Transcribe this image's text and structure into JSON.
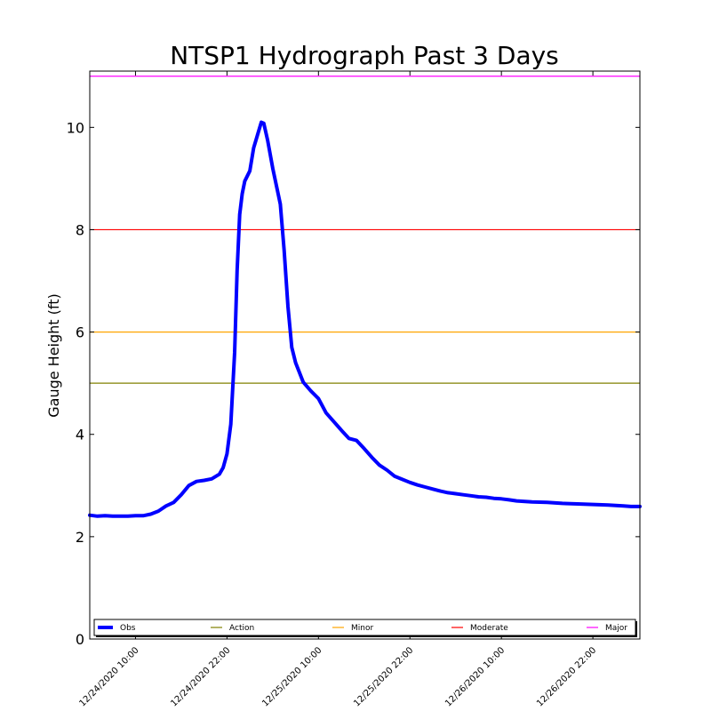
{
  "chart_data": {
    "type": "line",
    "title": "NTSP1 Hydrograph Past 3 Days",
    "xlabel": "",
    "ylabel": "Gauge Height (ft)",
    "xlim": [
      "12/24/2020 04:00",
      "12/27/2020 04:10"
    ],
    "ylim": [
      0,
      11.1
    ],
    "yticks": [
      0,
      2,
      4,
      6,
      8,
      10
    ],
    "xticks": [
      "12/24/2020 10:00",
      "12/24/2020 22:00",
      "12/25/2020 10:00",
      "12/25/2020 22:00",
      "12/26/2020 10:00",
      "12/26/2020 22:00"
    ],
    "grid": false,
    "legend_position": "bottom",
    "series": [
      {
        "name": "Obs",
        "color": "#0000ff",
        "points": [
          [
            "12/24/2020 04:00",
            2.42
          ],
          [
            "12/24/2020 05:00",
            2.4
          ],
          [
            "12/24/2020 06:00",
            2.41
          ],
          [
            "12/24/2020 07:00",
            2.4
          ],
          [
            "12/24/2020 08:00",
            2.4
          ],
          [
            "12/24/2020 09:00",
            2.4
          ],
          [
            "12/24/2020 10:00",
            2.41
          ],
          [
            "12/24/2020 11:00",
            2.41
          ],
          [
            "12/24/2020 12:00",
            2.44
          ],
          [
            "12/24/2020 13:00",
            2.5
          ],
          [
            "12/24/2020 14:00",
            2.6
          ],
          [
            "12/24/2020 15:00",
            2.67
          ],
          [
            "12/24/2020 16:00",
            2.82
          ],
          [
            "12/24/2020 17:00",
            3.0
          ],
          [
            "12/24/2020 18:00",
            3.08
          ],
          [
            "12/24/2020 19:00",
            3.1
          ],
          [
            "12/24/2020 20:00",
            3.13
          ],
          [
            "12/24/2020 21:00",
            3.22
          ],
          [
            "12/24/2020 21:30",
            3.35
          ],
          [
            "12/24/2020 22:00",
            3.62
          ],
          [
            "12/24/2020 22:30",
            4.2
          ],
          [
            "12/24/2020 23:00",
            5.6
          ],
          [
            "12/24/2020 23:20",
            7.2
          ],
          [
            "12/24/2020 23:40",
            8.3
          ],
          [
            "12/25/2020 00:00",
            8.7
          ],
          [
            "12/25/2020 00:20",
            8.95
          ],
          [
            "12/25/2020 01:00",
            9.15
          ],
          [
            "12/25/2020 01:30",
            9.6
          ],
          [
            "12/25/2020 02:00",
            9.85
          ],
          [
            "12/25/2020 02:30",
            10.1
          ],
          [
            "12/25/2020 02:50",
            10.08
          ],
          [
            "12/25/2020 03:20",
            9.75
          ],
          [
            "12/25/2020 04:00",
            9.2
          ],
          [
            "12/25/2020 05:00",
            8.5
          ],
          [
            "12/25/2020 05:30",
            7.6
          ],
          [
            "12/25/2020 06:00",
            6.5
          ],
          [
            "12/25/2020 06:30",
            5.7
          ],
          [
            "12/25/2020 07:00",
            5.4
          ],
          [
            "12/25/2020 08:00",
            5.02
          ],
          [
            "12/25/2020 09:00",
            4.85
          ],
          [
            "12/25/2020 10:00",
            4.7
          ],
          [
            "12/25/2020 11:00",
            4.42
          ],
          [
            "12/25/2020 12:00",
            4.25
          ],
          [
            "12/25/2020 13:00",
            4.08
          ],
          [
            "12/25/2020 14:00",
            3.92
          ],
          [
            "12/25/2020 15:00",
            3.88
          ],
          [
            "12/25/2020 16:00",
            3.72
          ],
          [
            "12/25/2020 17:00",
            3.55
          ],
          [
            "12/25/2020 18:00",
            3.4
          ],
          [
            "12/25/2020 19:00",
            3.3
          ],
          [
            "12/25/2020 20:00",
            3.18
          ],
          [
            "12/25/2020 21:00",
            3.12
          ],
          [
            "12/25/2020 22:00",
            3.06
          ],
          [
            "12/25/2020 23:00",
            3.01
          ],
          [
            "12/26/2020 00:00",
            2.97
          ],
          [
            "12/26/2020 01:00",
            2.93
          ],
          [
            "12/26/2020 02:00",
            2.89
          ],
          [
            "12/26/2020 03:00",
            2.86
          ],
          [
            "12/26/2020 04:00",
            2.84
          ],
          [
            "12/26/2020 05:00",
            2.82
          ],
          [
            "12/26/2020 06:00",
            2.8
          ],
          [
            "12/26/2020 07:00",
            2.78
          ],
          [
            "12/26/2020 08:00",
            2.77
          ],
          [
            "12/26/2020 09:00",
            2.75
          ],
          [
            "12/26/2020 10:00",
            2.74
          ],
          [
            "12/26/2020 11:00",
            2.72
          ],
          [
            "12/26/2020 12:00",
            2.7
          ],
          [
            "12/26/2020 14:00",
            2.68
          ],
          [
            "12/26/2020 16:00",
            2.67
          ],
          [
            "12/26/2020 18:00",
            2.65
          ],
          [
            "12/26/2020 20:00",
            2.64
          ],
          [
            "12/26/2020 22:00",
            2.63
          ],
          [
            "12/27/2020 00:00",
            2.62
          ],
          [
            "12/27/2020 01:00",
            2.61
          ],
          [
            "12/27/2020 02:00",
            2.6
          ],
          [
            "12/27/2020 03:00",
            2.59
          ],
          [
            "12/27/2020 04:10",
            2.59
          ]
        ]
      }
    ],
    "thresholds": [
      {
        "name": "Action",
        "value": 5,
        "color": "#808000"
      },
      {
        "name": "Minor",
        "value": 6,
        "color": "#ffa500"
      },
      {
        "name": "Moderate",
        "value": 8,
        "color": "#ff0000"
      },
      {
        "name": "Major",
        "value": 11,
        "color": "#ff00ff"
      }
    ]
  }
}
